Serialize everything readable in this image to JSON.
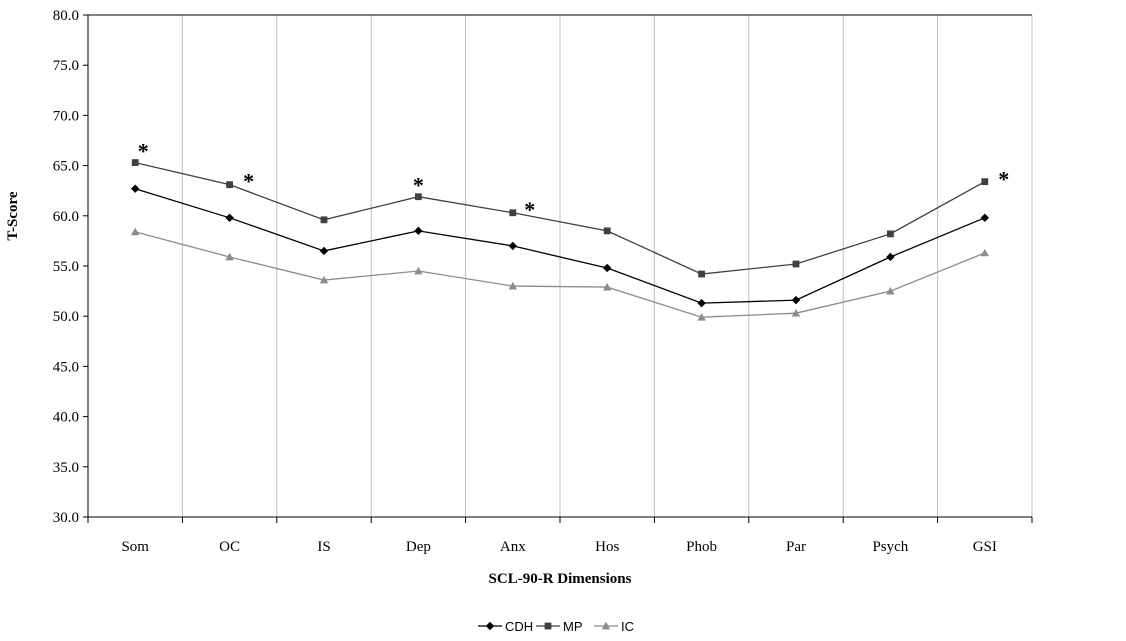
{
  "chart_data": {
    "type": "line",
    "title": "",
    "xlabel": "SCL-90-R Dimensions",
    "ylabel": "T-Score",
    "categories": [
      "Som",
      "OC",
      "IS",
      "Dep",
      "Anx",
      "Hos",
      "Phob",
      "Par",
      "Psych",
      "GSI"
    ],
    "ylim": [
      30.0,
      80.0
    ],
    "yticks": [
      "30.0",
      "35.0",
      "40.0",
      "45.0",
      "50.0",
      "55.0",
      "60.0",
      "65.0",
      "70.0",
      "75.0",
      "80.0"
    ],
    "grid": "vertical gridlines between categories",
    "legend_position": "bottom",
    "series": [
      {
        "name": "CDH",
        "marker": "diamond",
        "color": "#000000",
        "values": [
          62.7,
          59.8,
          56.5,
          58.5,
          57.0,
          54.8,
          51.3,
          51.6,
          55.9,
          59.8
        ]
      },
      {
        "name": "MP",
        "marker": "square",
        "color": "#404040",
        "values": [
          65.3,
          63.1,
          59.6,
          61.9,
          60.3,
          58.5,
          54.2,
          55.2,
          58.2,
          63.4
        ]
      },
      {
        "name": "IC",
        "marker": "triangle",
        "color": "#8c8c8c",
        "values": [
          58.4,
          55.9,
          53.6,
          54.5,
          53.0,
          52.9,
          49.9,
          50.3,
          52.5,
          56.3
        ]
      }
    ],
    "annotations": [
      {
        "text": "*",
        "category": "Som"
      },
      {
        "text": "*",
        "category": "OC"
      },
      {
        "text": "*",
        "category": "Dep"
      },
      {
        "text": "*",
        "category": "Anx"
      },
      {
        "text": "*",
        "category": "GSI"
      }
    ]
  }
}
